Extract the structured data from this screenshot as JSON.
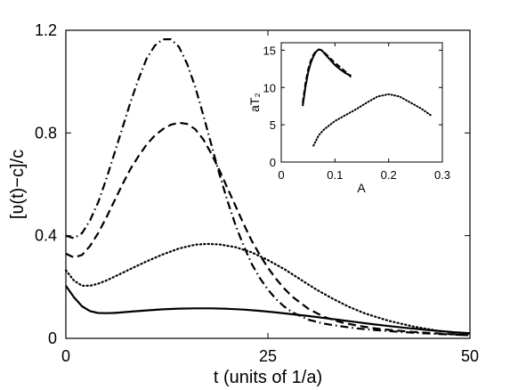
{
  "chart_data": [
    {
      "type": "line",
      "xlabel": "t (units of 1/a)",
      "ylabel": "[ʋ(t)−c]/c",
      "xlim": [
        0,
        50
      ],
      "ylim": [
        0,
        1.2
      ],
      "xticks": [
        0,
        25,
        50
      ],
      "xtick_labels": [
        "0",
        "25",
        "50"
      ],
      "yticks": [
        0,
        0.4,
        0.8,
        1.2
      ],
      "ytick_labels": [
        "0",
        "0.4",
        "0.8",
        "1.2"
      ],
      "grid": false,
      "series": [
        {
          "style": "solid",
          "x": [
            0,
            1,
            2,
            3,
            4,
            5,
            6,
            8,
            10,
            12,
            14,
            16,
            18,
            20,
            22,
            24,
            26,
            28,
            30,
            32,
            34,
            36,
            38,
            40,
            42,
            44,
            46,
            48,
            50
          ],
          "y": [
            0.205,
            0.16,
            0.125,
            0.106,
            0.099,
            0.098,
            0.099,
            0.104,
            0.109,
            0.113,
            0.116,
            0.117,
            0.117,
            0.115,
            0.112,
            0.107,
            0.101,
            0.094,
            0.087,
            0.079,
            0.071,
            0.063,
            0.055,
            0.048,
            0.041,
            0.035,
            0.029,
            0.024,
            0.02
          ]
        },
        {
          "style": "dotted",
          "x": [
            0,
            1,
            2,
            3,
            4,
            5,
            6,
            8,
            10,
            12,
            14,
            16,
            17.5,
            19,
            21,
            23,
            25,
            27,
            29,
            31,
            33,
            35,
            37,
            40,
            43,
            46,
            50
          ],
          "y": [
            0.265,
            0.225,
            0.205,
            0.205,
            0.213,
            0.225,
            0.24,
            0.27,
            0.3,
            0.327,
            0.35,
            0.365,
            0.368,
            0.366,
            0.355,
            0.335,
            0.305,
            0.27,
            0.23,
            0.19,
            0.155,
            0.123,
            0.097,
            0.068,
            0.046,
            0.03,
            0.016
          ]
        },
        {
          "style": "dashed",
          "x": [
            0,
            1,
            2,
            3,
            4,
            5,
            6,
            7,
            8,
            9,
            10,
            11,
            12,
            13,
            14,
            15,
            16,
            17,
            18,
            19,
            20,
            21,
            22,
            23,
            24,
            25,
            26,
            27,
            28,
            30,
            32,
            34,
            36,
            38,
            40,
            43,
            46,
            50
          ],
          "y": [
            0.33,
            0.315,
            0.325,
            0.36,
            0.41,
            0.47,
            0.535,
            0.6,
            0.66,
            0.71,
            0.755,
            0.79,
            0.815,
            0.832,
            0.84,
            0.835,
            0.815,
            0.775,
            0.72,
            0.655,
            0.585,
            0.515,
            0.445,
            0.38,
            0.325,
            0.275,
            0.232,
            0.195,
            0.163,
            0.115,
            0.083,
            0.063,
            0.05,
            0.04,
            0.033,
            0.025,
            0.019,
            0.012
          ]
        },
        {
          "style": "dashdot",
          "x": [
            0,
            1,
            2,
            3,
            4,
            5,
            6,
            7,
            8,
            9,
            10,
            11,
            12,
            13,
            14,
            15,
            16,
            17,
            18,
            19,
            20,
            21,
            22,
            23,
            24,
            25,
            26,
            27,
            28,
            30,
            32,
            34,
            36,
            38,
            40,
            43,
            46,
            50
          ],
          "y": [
            0.4,
            0.39,
            0.41,
            0.46,
            0.53,
            0.62,
            0.72,
            0.82,
            0.92,
            1.01,
            1.09,
            1.14,
            1.165,
            1.165,
            1.135,
            1.07,
            0.98,
            0.87,
            0.755,
            0.64,
            0.535,
            0.44,
            0.36,
            0.29,
            0.235,
            0.19,
            0.153,
            0.124,
            0.102,
            0.073,
            0.057,
            0.047,
            0.039,
            0.033,
            0.028,
            0.022,
            0.017,
            0.012
          ]
        }
      ]
    },
    {
      "type": "line",
      "xlabel": "A",
      "ylabel": "aT₂",
      "xlim": [
        0,
        0.3
      ],
      "ylim": [
        0,
        16
      ],
      "xticks": [
        0,
        0.1,
        0.2,
        0.3
      ],
      "xtick_labels": [
        "0",
        "0.1",
        "0.2",
        "0.3"
      ],
      "yticks": [
        0,
        5,
        10,
        15
      ],
      "ytick_labels": [
        "0",
        "5",
        "10",
        "15"
      ],
      "grid": false,
      "series": [
        {
          "style": "solid",
          "x": [
            0.04,
            0.045,
            0.05,
            0.055,
            0.06,
            0.065,
            0.07,
            0.075,
            0.08,
            0.09,
            0.1,
            0.11,
            0.12,
            0.13
          ],
          "y": [
            7.5,
            10.0,
            12.0,
            13.3,
            14.2,
            14.8,
            15.1,
            15.0,
            14.6,
            13.8,
            13.0,
            12.4,
            11.9,
            11.6
          ]
        },
        {
          "style": "dashed",
          "x": [
            0.04,
            0.045,
            0.05,
            0.055,
            0.06,
            0.065,
            0.07,
            0.075,
            0.08,
            0.09,
            0.1,
            0.11,
            0.12,
            0.13
          ],
          "y": [
            7.9,
            10.5,
            12.4,
            13.6,
            14.4,
            14.9,
            15.1,
            15.0,
            14.7,
            14.0,
            13.3,
            12.7,
            12.1,
            11.4
          ]
        },
        {
          "style": "dotted",
          "x": [
            0.06,
            0.07,
            0.08,
            0.1,
            0.12,
            0.14,
            0.16,
            0.18,
            0.2,
            0.22,
            0.24,
            0.26,
            0.28
          ],
          "y": [
            2.2,
            3.6,
            4.4,
            5.5,
            6.3,
            7.1,
            8.0,
            8.8,
            9.1,
            8.8,
            8.0,
            7.2,
            6.2
          ]
        }
      ]
    }
  ]
}
